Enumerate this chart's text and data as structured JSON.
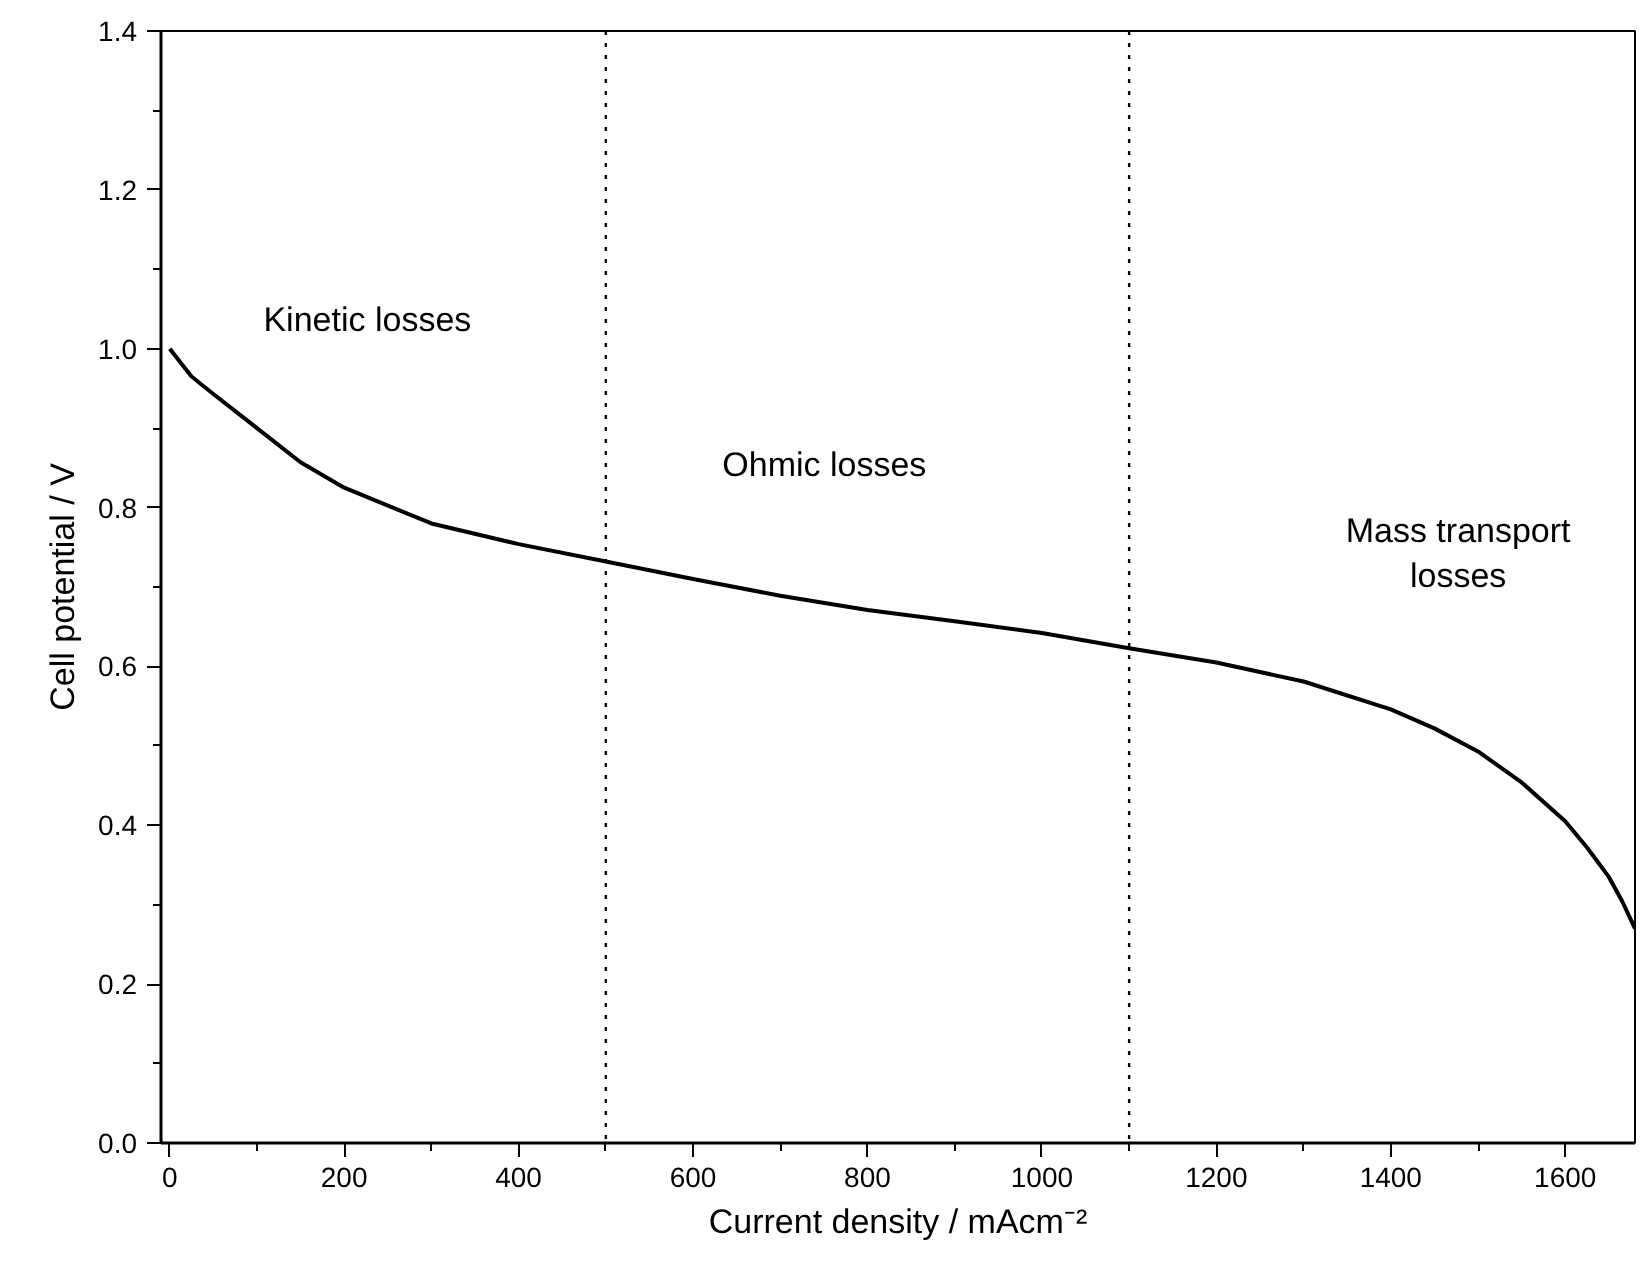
{
  "chart_data": {
    "type": "line",
    "xlabel": "Current density / mAcm⁻²",
    "ylabel": "Cell potential / V",
    "x": [
      0,
      25,
      50,
      100,
      150,
      200,
      300,
      400,
      500,
      600,
      700,
      800,
      900,
      1000,
      1100,
      1200,
      1300,
      1400,
      1450,
      1500,
      1550,
      1600,
      1625,
      1650,
      1665,
      1680
    ],
    "series": [
      {
        "color": "#000000",
        "values": [
          1.0,
          0.965,
          0.943,
          0.9,
          0.857,
          0.825,
          0.78,
          0.754,
          0.732,
          0.71,
          0.689,
          0.671,
          0.657,
          0.642,
          0.623,
          0.605,
          0.581,
          0.546,
          0.522,
          0.493,
          0.454,
          0.405,
          0.372,
          0.335,
          0.305,
          0.27
        ]
      }
    ],
    "xlim": [
      -10,
      1680
    ],
    "ylim": [
      0,
      1.4
    ],
    "xticks": [
      0,
      200,
      400,
      600,
      800,
      1000,
      1200,
      1400,
      1600
    ],
    "yticks": [
      {
        "value": 0,
        "label": "0.0"
      },
      {
        "value": 0.2,
        "label": "0.2"
      },
      {
        "value": 0.4,
        "label": "0.4"
      },
      {
        "value": 0.6,
        "label": "0.6"
      },
      {
        "value": 0.8,
        "label": "0.8"
      },
      {
        "value": 1.0,
        "label": "1.0"
      },
      {
        "value": 1.2,
        "label": "1.2"
      },
      {
        "value": 1.4,
        "label": "1.4"
      }
    ],
    "ref_lines": [
      {
        "axis": "x",
        "value": 500,
        "color": "#000000",
        "line_style": "dotted"
      },
      {
        "axis": "x",
        "value": 1100,
        "color": "#000000",
        "line_style": "dotted"
      }
    ],
    "annotations": [
      "Kinetic losses",
      "Ohmic losses",
      "Mass transport losses"
    ],
    "grid": false,
    "marker": "none",
    "line_style": "solid"
  }
}
